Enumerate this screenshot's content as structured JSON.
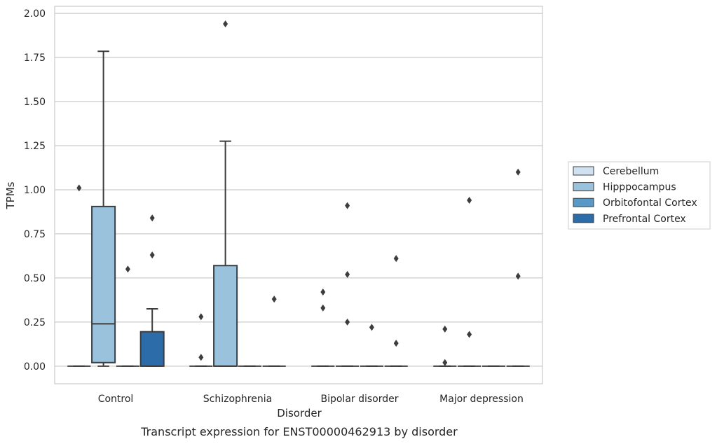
{
  "chart_data": {
    "type": "box",
    "caption": "Transcript expression for ENST00000462913 by disorder",
    "xlabel": "Disorder",
    "ylabel": "TPMs",
    "ylim": [
      -0.1,
      2.04
    ],
    "yticks": [
      0.0,
      0.25,
      0.5,
      0.75,
      1.0,
      1.25,
      1.5,
      1.75,
      2.0
    ],
    "ytick_labels": [
      "0.00",
      "0.25",
      "0.50",
      "0.75",
      "1.00",
      "1.25",
      "1.50",
      "1.75",
      "2.00"
    ],
    "grid": true,
    "legend_position": "right",
    "categories": [
      "Control",
      "Schizophrenia",
      "Bipolar disorder",
      "Major depression"
    ],
    "series": [
      {
        "name": "Cerebellum",
        "color": "#d0e1f2",
        "boxes": [
          {
            "min": 0,
            "q1": 0,
            "median": 0,
            "q3": 0,
            "max": 0,
            "outliers": [
              1.01
            ]
          },
          {
            "min": 0,
            "q1": 0,
            "median": 0,
            "q3": 0,
            "max": 0,
            "outliers": [
              0.28,
              0.05
            ]
          },
          {
            "min": 0,
            "q1": 0,
            "median": 0,
            "q3": 0,
            "max": 0,
            "outliers": [
              0.42,
              0.33
            ]
          },
          {
            "min": 0,
            "q1": 0,
            "median": 0,
            "q3": 0,
            "max": 0,
            "outliers": [
              0.21,
              0.02
            ]
          }
        ]
      },
      {
        "name": "Hipppocampus",
        "color": "#9ac2dd",
        "boxes": [
          {
            "min": 0,
            "q1": 0.02,
            "median": 0.24,
            "q3": 0.905,
            "max": 1.785,
            "outliers": []
          },
          {
            "min": 0,
            "q1": 0,
            "median": 0,
            "q3": 0.57,
            "max": 1.275,
            "outliers": [
              1.94
            ]
          },
          {
            "min": 0,
            "q1": 0,
            "median": 0,
            "q3": 0,
            "max": 0,
            "outliers": [
              0.91,
              0.52,
              0.25
            ]
          },
          {
            "min": 0,
            "q1": 0,
            "median": 0,
            "q3": 0,
            "max": 0,
            "outliers": [
              0.94,
              0.18
            ]
          }
        ]
      },
      {
        "name": "Orbitofontal Cortex",
        "color": "#5799c7",
        "boxes": [
          {
            "min": 0,
            "q1": 0,
            "median": 0,
            "q3": 0,
            "max": 0,
            "outliers": [
              0.55
            ]
          },
          {
            "min": 0,
            "q1": 0,
            "median": 0,
            "q3": 0,
            "max": 0,
            "outliers": []
          },
          {
            "min": 0,
            "q1": 0,
            "median": 0,
            "q3": 0,
            "max": 0,
            "outliers": [
              0.22
            ]
          },
          {
            "min": 0,
            "q1": 0,
            "median": 0,
            "q3": 0,
            "max": 0,
            "outliers": []
          }
        ]
      },
      {
        "name": "Prefrontal Cortex",
        "color": "#2c6ca8",
        "boxes": [
          {
            "min": 0,
            "q1": 0,
            "median": 0,
            "q3": 0.195,
            "max": 0.325,
            "outliers": [
              0.84,
              0.63
            ]
          },
          {
            "min": 0,
            "q1": 0,
            "median": 0,
            "q3": 0,
            "max": 0,
            "outliers": [
              0.38
            ]
          },
          {
            "min": 0,
            "q1": 0,
            "median": 0,
            "q3": 0,
            "max": 0,
            "outliers": [
              0.61,
              0.13
            ]
          },
          {
            "min": 0,
            "q1": 0,
            "median": 0,
            "q3": 0,
            "max": 0,
            "outliers": [
              1.1,
              0.51
            ]
          }
        ]
      }
    ]
  }
}
